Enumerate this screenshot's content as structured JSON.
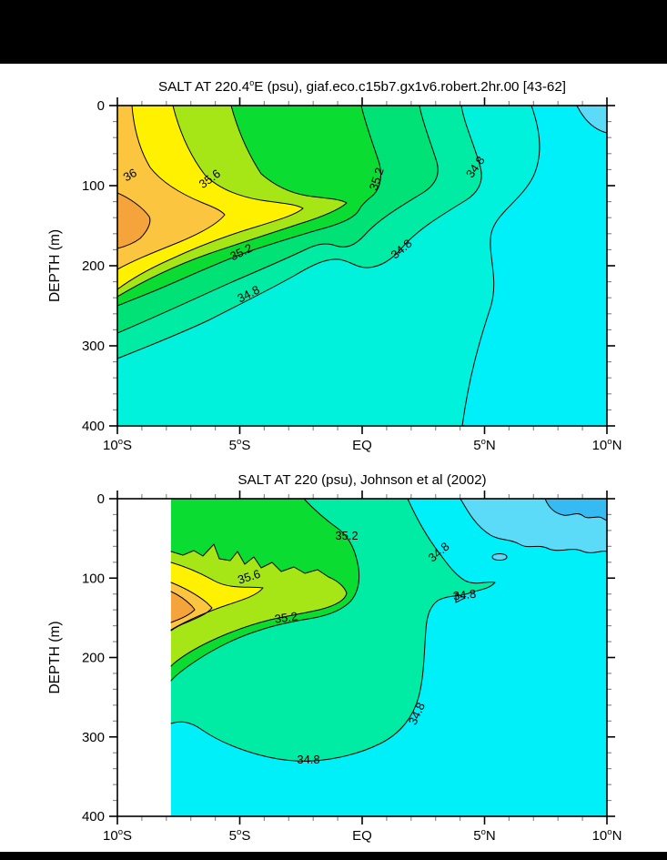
{
  "window": {
    "background": "#ffffff",
    "top_bar_color": "#000000",
    "bottom_bar_color": "#000000"
  },
  "chart_data": [
    {
      "type": "contour",
      "title": "SALT AT 220.4°E (psu), giaf.eco.c15b7.gx1v6.robert.2hr.00 [43-62]",
      "variable": "SALT",
      "units": "psu",
      "ylabel": "DEPTH (m)",
      "y_ticks": [
        "0",
        "100",
        "200",
        "300",
        "400"
      ],
      "y_range_m": [
        0,
        400
      ],
      "y_axis_inverted": true,
      "x_ticks": [
        "10°S",
        "5°S",
        "EQ",
        "5°N",
        "10°N"
      ],
      "x_range_deg_lat": [
        -10,
        10
      ],
      "x_minor_tick_deg": 1,
      "y_minor_tick_m": 20,
      "grid": false,
      "legend": "none",
      "contour_fill_interval_psu": 0.2,
      "labeled_contours": [
        34.8,
        35.2,
        35.6,
        36
      ],
      "high_salinity_core": {
        "lat": "left edge (~10°S)",
        "depth_m": "95-160",
        "max_psu": "> 36.2"
      },
      "low_salinity_region": {
        "lat": "5°N-10°N",
        "psu": "< 34.6"
      },
      "contour_labels": [
        {
          "value": "36",
          "x": 16,
          "y": 80,
          "rot": -30
        },
        {
          "value": "35.6",
          "x": 104,
          "y": 84,
          "rot": -36
        },
        {
          "value": "35.2",
          "x": 289,
          "y": 82,
          "rot": -72
        },
        {
          "value": "35.2",
          "x": 138,
          "y": 165,
          "rot": -26
        },
        {
          "value": "34.8",
          "x": 146,
          "y": 211,
          "rot": -27
        },
        {
          "value": "34.8",
          "x": 315,
          "y": 161,
          "rot": -40
        },
        {
          "value": "34.8",
          "x": 397,
          "y": 70,
          "rot": -55
        }
      ]
    },
    {
      "type": "contour",
      "title": "SALT AT 220 (psu), Johnson et al (2002)",
      "variable": "SALT",
      "units": "psu",
      "ylabel": "DEPTH (m)",
      "y_ticks": [
        "0",
        "100",
        "200",
        "300",
        "400"
      ],
      "y_range_m": [
        0,
        400
      ],
      "y_axis_inverted": true,
      "x_ticks": [
        "10°S",
        "5°S",
        "EQ",
        "5°N",
        "10°N"
      ],
      "x_range_deg_lat": [
        -10,
        10
      ],
      "x_minor_tick_deg": 1,
      "y_minor_tick_m": 20,
      "grid": false,
      "legend": "none",
      "data_coverage": "no data west of ~8°S (white strip at left of axes)",
      "contour_fill_interval_psu": 0.2,
      "labeled_contours": [
        34.8,
        35.2,
        35.6
      ],
      "high_salinity_core": {
        "lat": "~8°S (left data edge)",
        "depth_m": "115-155",
        "max_psu": "> 36"
      },
      "low_salinity_region": {
        "lat": "8°N-10°N near surface",
        "psu": "< 34.2"
      },
      "contour_labels": [
        {
          "value": "35.2",
          "x": 252,
          "y": 45,
          "rot": 0
        },
        {
          "value": "35.6",
          "x": 146,
          "y": 90,
          "rot": -18
        },
        {
          "value": "35.2",
          "x": 186,
          "y": 135,
          "rot": -8
        },
        {
          "value": "34.8",
          "x": 356,
          "y": 62,
          "rot": -40
        },
        {
          "value": "34.8",
          "x": 382,
          "y": 110,
          "rot": -6
        },
        {
          "value": "34.8",
          "x": 333,
          "y": 238,
          "rot": -65
        },
        {
          "value": "34.8",
          "x": 210,
          "y": 291,
          "rot": 0
        }
      ]
    }
  ],
  "palette_bands": [
    {
      "band": "> 36.2",
      "color": "#F5A43C"
    },
    {
      "band": "36.0 - 36.2",
      "color": "#FBC53F"
    },
    {
      "band": "35.6 - 36.0",
      "color": "#FFF100"
    },
    {
      "band": "35.4 - 35.6",
      "color": "#A6E616"
    },
    {
      "band": "35.2 - 35.4",
      "color": "#0ADC32"
    },
    {
      "band": "35.0 - 35.2",
      "color": "#00E276"
    },
    {
      "band": "34.8 - 35.0",
      "color": "#00ECA4"
    },
    {
      "band": "34.6 - 34.8",
      "color": "#00F2DC"
    },
    {
      "band": "34.4 - 34.6",
      "color": "#00F0FA"
    },
    {
      "band": "34.2 - 34.4",
      "color": "#5CDBF8"
    },
    {
      "band": "< 34.2",
      "color": "#35BBF2"
    }
  ],
  "axis_style": {
    "frame_color": "#000000",
    "major_tick_color": "#000000",
    "minor_tick_color": "#8c8c8c",
    "contour_line_color": "#000000"
  }
}
